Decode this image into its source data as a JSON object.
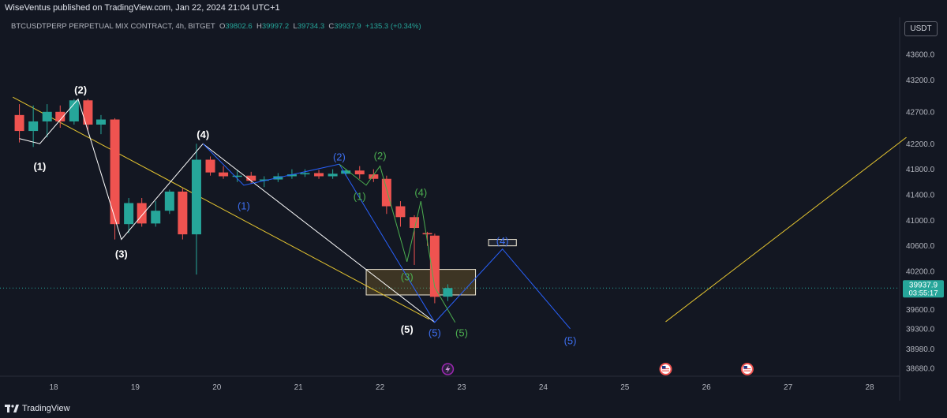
{
  "header": {
    "publisher": "WiseVentus published on TradingView.com, Jan 22, 2024 21:04 UTC+1"
  },
  "symbol_info": {
    "name": "BTCUSDTPERP PERPETUAL MIX CONTRACT, 4h, BITGET",
    "open_label": "O",
    "open": "39802.6",
    "high_label": "H",
    "high": "39997.2",
    "low_label": "L",
    "low": "39734.3",
    "close_label": "C",
    "close": "39937.9",
    "change": "+135.3 (+0.34%)"
  },
  "currency_button": "USDT",
  "footer": {
    "brand": "TradingView"
  },
  "colors": {
    "background": "#131722",
    "up": "#26a69a",
    "down": "#ef5350",
    "white_wave": "#ffffff",
    "blue_wave": "#2962ff",
    "green_wave": "#4caf50",
    "trendline": "#e5c530"
  },
  "chart_data": {
    "type": "candlestick",
    "timeframe": "4h",
    "x_ticks": [
      "18",
      "19",
      "20",
      "21",
      "22",
      "23",
      "24",
      "25",
      "26",
      "27",
      "28"
    ],
    "y_ticks": [
      "43600.0",
      "43200.0",
      "42700.0",
      "42200.0",
      "41800.0",
      "41400.0",
      "41000.0",
      "40600.0",
      "40200.0",
      "39600.0",
      "39300.0",
      "38980.0",
      "38680.0"
    ],
    "y_range": [
      38450,
      43800
    ],
    "last_price": "39937.9",
    "countdown": "03:55:17",
    "candles": [
      {
        "d": 17.58,
        "o": 42650,
        "h": 42820,
        "l": 42220,
        "c": 42400
      },
      {
        "d": 17.75,
        "o": 42400,
        "h": 42800,
        "l": 42150,
        "c": 42550
      },
      {
        "d": 17.92,
        "o": 42550,
        "h": 42820,
        "l": 42300,
        "c": 42700
      },
      {
        "d": 18.08,
        "o": 42700,
        "h": 42800,
        "l": 42450,
        "c": 42550
      },
      {
        "d": 18.25,
        "o": 42550,
        "h": 42900,
        "l": 42500,
        "c": 42880
      },
      {
        "d": 18.42,
        "o": 42880,
        "h": 42900,
        "l": 42400,
        "c": 42500
      },
      {
        "d": 18.58,
        "o": 42500,
        "h": 42650,
        "l": 42350,
        "c": 42580
      },
      {
        "d": 18.75,
        "o": 42580,
        "h": 42600,
        "l": 40700,
        "c": 40940
      },
      {
        "d": 18.92,
        "o": 40940,
        "h": 41350,
        "l": 40800,
        "c": 41270
      },
      {
        "d": 19.08,
        "o": 41270,
        "h": 41350,
        "l": 40900,
        "c": 40950
      },
      {
        "d": 19.25,
        "o": 40950,
        "h": 41300,
        "l": 40900,
        "c": 41150
      },
      {
        "d": 19.42,
        "o": 41150,
        "h": 41480,
        "l": 41100,
        "c": 41450
      },
      {
        "d": 19.58,
        "o": 41450,
        "h": 41500,
        "l": 40700,
        "c": 40780
      },
      {
        "d": 19.75,
        "o": 40780,
        "h": 42200,
        "l": 40150,
        "c": 41950
      },
      {
        "d": 19.92,
        "o": 41950,
        "h": 42000,
        "l": 41700,
        "c": 41750
      },
      {
        "d": 20.08,
        "o": 41750,
        "h": 41850,
        "l": 41650,
        "c": 41690
      },
      {
        "d": 20.25,
        "o": 41690,
        "h": 41780,
        "l": 41600,
        "c": 41700
      },
      {
        "d": 20.42,
        "o": 41700,
        "h": 41760,
        "l": 41580,
        "c": 41620
      },
      {
        "d": 20.58,
        "o": 41620,
        "h": 41690,
        "l": 41520,
        "c": 41640
      },
      {
        "d": 20.75,
        "o": 41640,
        "h": 41740,
        "l": 41600,
        "c": 41690
      },
      {
        "d": 20.92,
        "o": 41690,
        "h": 41800,
        "l": 41650,
        "c": 41720
      },
      {
        "d": 21.08,
        "o": 41720,
        "h": 41800,
        "l": 41680,
        "c": 41740
      },
      {
        "d": 21.25,
        "o": 41740,
        "h": 41790,
        "l": 41650,
        "c": 41690
      },
      {
        "d": 21.42,
        "o": 41690,
        "h": 41800,
        "l": 41650,
        "c": 41730
      },
      {
        "d": 21.58,
        "o": 41730,
        "h": 41800,
        "l": 41700,
        "c": 41780
      },
      {
        "d": 21.75,
        "o": 41780,
        "h": 41850,
        "l": 41650,
        "c": 41720
      },
      {
        "d": 21.92,
        "o": 41720,
        "h": 41800,
        "l": 41600,
        "c": 41650
      },
      {
        "d": 22.08,
        "o": 41650,
        "h": 41700,
        "l": 41100,
        "c": 41220
      },
      {
        "d": 22.25,
        "o": 41220,
        "h": 41300,
        "l": 40900,
        "c": 41050
      },
      {
        "d": 22.42,
        "o": 41050,
        "h": 41080,
        "l": 40300,
        "c": 40880
      },
      {
        "d": 22.58,
        "o": 40800,
        "h": 40820,
        "l": 40600,
        "c": 40780
      },
      {
        "d": 22.67,
        "o": 40760,
        "h": 40790,
        "l": 39700,
        "c": 39800
      },
      {
        "d": 22.83,
        "o": 39802.6,
        "h": 39997.2,
        "l": 39734.3,
        "c": 39937.9
      }
    ],
    "waves": {
      "white": {
        "points": [
          [
            17.58,
            42280
          ],
          [
            17.83,
            42200
          ],
          [
            18.3,
            42900
          ],
          [
            18.83,
            40700
          ],
          [
            19.83,
            42200
          ],
          [
            22.67,
            39400
          ]
        ],
        "labels": [
          {
            "text": "(1)",
            "d": 17.83,
            "v": 41850
          },
          {
            "text": "(2)",
            "d": 18.33,
            "v": 43050
          },
          {
            "text": "(3)",
            "d": 18.83,
            "v": 40480
          },
          {
            "text": "(4)",
            "d": 19.83,
            "v": 42350
          },
          {
            "text": "(5)",
            "d": 22.33,
            "v": 39300
          }
        ]
      },
      "blue": {
        "points": [
          [
            19.83,
            42200
          ],
          [
            20.33,
            41550
          ],
          [
            21.5,
            41880
          ],
          [
            22.67,
            39400
          ],
          [
            23.5,
            40550
          ],
          [
            24.33,
            39300
          ]
        ],
        "labels": [
          {
            "text": "(1)",
            "d": 20.33,
            "v": 41230
          },
          {
            "text": "(2)",
            "d": 21.5,
            "v": 42000
          },
          {
            "text": "(5)",
            "d": 22.67,
            "v": 39240
          },
          {
            "text": "(4)",
            "d": 23.5,
            "v": 40680
          },
          {
            "text": "(5)",
            "d": 24.33,
            "v": 39120
          }
        ]
      },
      "green": {
        "points": [
          [
            21.5,
            41880
          ],
          [
            21.83,
            41550
          ],
          [
            22.0,
            41850
          ],
          [
            22.33,
            40350
          ],
          [
            22.5,
            41300
          ],
          [
            22.67,
            39950
          ],
          [
            22.92,
            39400
          ]
        ],
        "labels": [
          {
            "text": "(1)",
            "d": 21.75,
            "v": 41380
          },
          {
            "text": "(2)",
            "d": 22.0,
            "v": 42020
          },
          {
            "text": "(3)",
            "d": 22.33,
            "v": 40120
          },
          {
            "text": "(4)",
            "d": 22.5,
            "v": 41440
          },
          {
            "text": "(5)",
            "d": 23.0,
            "v": 39240
          }
        ]
      }
    },
    "trendlines": [
      {
        "from": [
          17.5,
          42930
        ],
        "to": [
          22.6,
          39450
        ]
      },
      {
        "from": [
          25.5,
          39410
        ],
        "to": [
          28.45,
          42300
        ]
      }
    ],
    "zones": [
      {
        "d1": 21.83,
        "d2": 23.17,
        "v1": 40230,
        "v2": 39830
      },
      {
        "d1": 23.33,
        "d2": 23.67,
        "v1": 40700,
        "v2": 40600
      }
    ],
    "events": [
      {
        "icon": "lightning-icon",
        "d": 22.83
      },
      {
        "icon": "us-flag-icon",
        "d": 25.5
      },
      {
        "icon": "us-flag-icon",
        "d": 26.5
      }
    ]
  }
}
